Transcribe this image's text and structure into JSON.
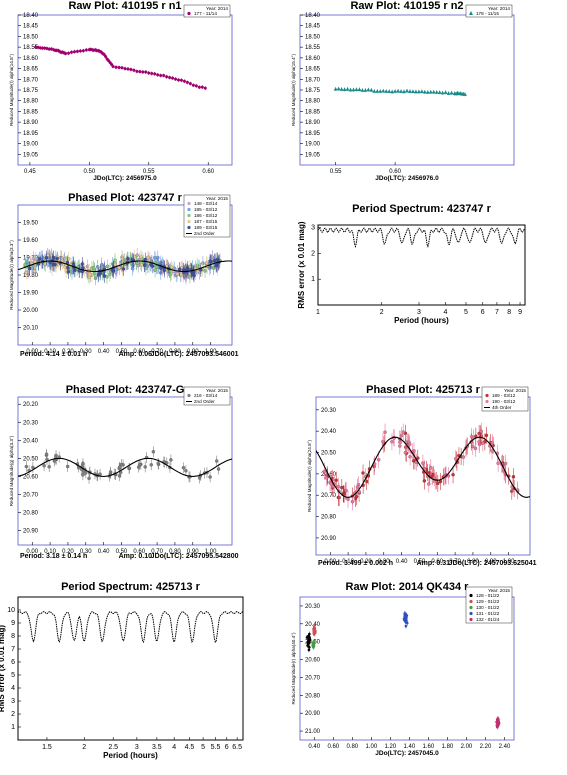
{
  "figure": {
    "name": "lightcurve-figure-grid"
  },
  "chart_data": [
    {
      "type": "scatter",
      "title": "Raw Plot: 410195   r  n1",
      "xlabel": "JDo(LTC): 2456975.0",
      "ylabel": "Reduced Magnitude(r) alpha(14.8°)",
      "xlim": [
        0.44,
        0.62
      ],
      "ylim": [
        19.1,
        18.4
      ],
      "y_inverted": true,
      "xticks": [
        "0.45",
        "0.50",
        "0.55",
        "0.60"
      ],
      "yticks": [
        "18.40",
        "18.45",
        "18.50",
        "18.55",
        "18.60",
        "18.65",
        "18.70",
        "18.75",
        "18.80",
        "18.85",
        "18.90",
        "18.95",
        "19.00",
        "19.05"
      ],
      "legend_title": "Year: 2014",
      "series": [
        {
          "name": "177 - 11/14",
          "color": "#a0006e",
          "marker": "circle",
          "mode": "trend",
          "x": [
            0.455,
            0.47,
            0.48,
            0.5,
            0.51,
            0.52,
            0.54,
            0.56,
            0.58,
            0.6
          ],
          "y": [
            18.55,
            18.56,
            18.58,
            18.56,
            18.57,
            18.64,
            18.66,
            18.68,
            18.71,
            18.75
          ]
        }
      ],
      "grid": false,
      "legend_position": "top-right"
    },
    {
      "type": "scatter",
      "title": "Raw Plot: 410195   r  n2",
      "xlabel": "JDo(LTC): 2456976.0",
      "ylabel": "Reduced Magnitude(r) alpha(15.4°)",
      "xlim": [
        0.52,
        0.7
      ],
      "ylim": [
        19.1,
        18.4
      ],
      "y_inverted": true,
      "xticks": [
        "0.55",
        "0.60"
      ],
      "yticks": [
        "18.40",
        "18.45",
        "18.50",
        "18.55",
        "18.60",
        "18.65",
        "18.70",
        "18.75",
        "18.80",
        "18.85",
        "18.90",
        "18.95",
        "19.00",
        "19.05"
      ],
      "legend_title": "Year: 2014",
      "series": [
        {
          "name": "178 - 11/15",
          "color": "#1a8a8a",
          "marker": "triangle",
          "mode": "trend",
          "x": [
            0.55,
            0.57,
            0.59,
            0.61,
            0.63,
            0.65,
            0.66
          ],
          "y": [
            18.745,
            18.75,
            18.755,
            18.755,
            18.76,
            18.765,
            18.77
          ]
        }
      ],
      "grid": false,
      "legend_position": "top-right"
    },
    {
      "type": "scatter",
      "title": "Phased Plot: 423747   r",
      "xlabel": "",
      "ylabel": "Reduced Magnitude(r) alpha(3.3°)",
      "xlim": [
        -0.08,
        1.12
      ],
      "ylim": [
        20.2,
        19.4
      ],
      "y_inverted": true,
      "xticks": [
        "0.00",
        "0.10",
        "0.20",
        "0.30",
        "0.40",
        "0.50",
        "0.60",
        "0.70",
        "0.80",
        "0.90",
        "1.00"
      ],
      "yticks": [
        "19.50",
        "19.60",
        "19.70",
        "19.80",
        "19.90",
        "20.00",
        "20.10"
      ],
      "legend_title": "Year: 2015",
      "footer": [
        "Period: 4.14 ± 0.01 h",
        "Amp: 0.06",
        "JDo(LTC): 2457093.546001"
      ],
      "series": [
        {
          "name": "148 - 03/14",
          "color": "#c8a0d8",
          "marker": "circle",
          "mode": "scatter"
        },
        {
          "name": "185 - 03/12",
          "color": "#6fa5e8",
          "marker": "circle",
          "mode": "scatter"
        },
        {
          "name": "186 - 03/12",
          "color": "#7fc87f",
          "marker": "circle",
          "mode": "scatter"
        },
        {
          "name": "187 - 03/15",
          "color": "#e8c890",
          "marker": "circle",
          "mode": "scatter"
        },
        {
          "name": "189 - 03/15",
          "color": "#4050a0",
          "marker": "circle",
          "mode": "scatter"
        },
        {
          "name": "2nd Order",
          "color": "#000000",
          "marker": "line",
          "mode": "fit",
          "fit": {
            "mean": 19.75,
            "a1": 0.0,
            "a2": 0.03,
            "phase1": 0.0,
            "phase2": 0.35,
            "period_phases": 2
          }
        }
      ],
      "scatter_spread": 0.05,
      "error_bar": 0.04,
      "grid": false,
      "legend_position": "top-right"
    },
    {
      "type": "line",
      "title": "Period Spectrum: 423747   r",
      "xlabel": "Period (hours)",
      "ylabel": "RMS error (x 0.01 mag)",
      "xscale": "log",
      "xlim": [
        1,
        9.5
      ],
      "ylim": [
        0,
        3.1
      ],
      "xticks": [
        "1",
        "2",
        "3",
        "4",
        "5",
        "6",
        "7",
        "8",
        "9"
      ],
      "yticks": [
        "1",
        "2",
        "3"
      ],
      "series": [
        {
          "name": "",
          "color": "#000000",
          "mode": "spectrum",
          "base": 2.9,
          "drop": 0.55,
          "min_at": [
            1.5,
            2.07,
            2.5,
            2.8,
            3.3,
            4.14,
            4.6,
            5.2,
            6.2,
            7.4,
            8.5
          ]
        }
      ],
      "grid": false
    },
    {
      "type": "scatter",
      "title": "Phased Plot: 423747-G",
      "xlabel": "",
      "ylabel": "Reduced Magnitude(g) alpha(3.3°)",
      "xlim": [
        -0.08,
        1.12
      ],
      "ylim": [
        20.98,
        20.16
      ],
      "y_inverted": true,
      "xticks": [
        "0.00",
        "0.10",
        "0.20",
        "0.30",
        "0.40",
        "0.50",
        "0.60",
        "0.70",
        "0.80",
        "0.90",
        "1.00"
      ],
      "yticks": [
        "20.20",
        "20.30",
        "20.40",
        "20.50",
        "20.60",
        "20.70",
        "20.80",
        "20.90"
      ],
      "legend_title": "Year: 2015",
      "footer": [
        "Period: 3.18 ± 0.14 h",
        "Amp: 0.10",
        "JDo(LTC): 2457095.542800"
      ],
      "series": [
        {
          "name": "216 - 03/14",
          "color": "#808080",
          "marker": "circle",
          "mode": "scatter"
        },
        {
          "name": "2nd Order",
          "color": "#000000",
          "marker": "line",
          "mode": "fit",
          "fit": {
            "mean": 20.55,
            "a1": 0.0,
            "a2": 0.05,
            "phase1": 0.0,
            "phase2": 0.4,
            "period_phases": 2
          }
        }
      ],
      "scatter_spread": 0.06,
      "error_bar": 0.03,
      "grid": false,
      "legend_position": "top-right"
    },
    {
      "type": "scatter",
      "title": "Phased Plot: 425713   r",
      "xlabel": "",
      "ylabel": "Reduced Magnitude(r) alpha(24.8°)",
      "xlim": [
        -0.08,
        1.12
      ],
      "ylim": [
        20.98,
        20.24
      ],
      "y_inverted": true,
      "xticks": [
        "0.00",
        "0.10",
        "0.20",
        "0.30",
        "0.40",
        "0.50",
        "0.60",
        "0.70",
        "0.80",
        "0.90",
        "1.00"
      ],
      "yticks": [
        "20.30",
        "20.40",
        "20.50",
        "20.60",
        "20.70",
        "20.80",
        "20.90"
      ],
      "legend_title": "Year: 2015",
      "footer": [
        "Period: 3.499 ± 0.002 h",
        "Amp: 0.31",
        "JDo(LTC): 2457093.625041"
      ],
      "series": [
        {
          "name": "189 - 03/12",
          "color": "#c83232",
          "marker": "circle",
          "mode": "scatter"
        },
        {
          "name": "190 - 03/12",
          "color": "#e878a0",
          "marker": "circle",
          "mode": "scatter"
        },
        {
          "name": "4th Order",
          "color": "#000000",
          "marker": "line",
          "mode": "fit",
          "fit": {
            "mean": 20.55,
            "a1": 0.04,
            "a2": 0.12,
            "phase1": 0.1,
            "phase2": 0.6,
            "period_phases": 2
          }
        }
      ],
      "scatter_spread": 0.07,
      "error_bar": 0.04,
      "grid": false,
      "legend_position": "top-right"
    },
    {
      "type": "line",
      "title": "Period Spectrum: 425713   r",
      "xlabel": "Period (hours)",
      "ylabel": "RMS error (x 0.01 mag)",
      "xscale": "log",
      "xlim": [
        1.2,
        6.8
      ],
      "ylim": [
        0,
        11
      ],
      "xticks": [
        "1.5",
        "2",
        "2.5",
        "3",
        "3.5",
        "4",
        "4.5",
        "5",
        "5.5",
        "6",
        "6.5"
      ],
      "yticks": [
        "1",
        "2",
        "3",
        "4",
        "5",
        "6",
        "7",
        "8",
        "9",
        "10"
      ],
      "series": [
        {
          "name": "",
          "color": "#000000",
          "mode": "spectrum",
          "base": 9.8,
          "drop": 2.2,
          "min_at": [
            1.35,
            1.65,
            1.85,
            2.0,
            2.3,
            2.7,
            3.15,
            3.5,
            4.0,
            4.6,
            5.5
          ]
        }
      ],
      "grid": false
    },
    {
      "type": "scatter",
      "title": "Raw Plot: 2014  QK434   r",
      "xlabel": "JDo(LTC): 2457045.0",
      "ylabel": "Reduced Magnitude(r) alpha(40.4°)",
      "xlim": [
        0.25,
        2.5
      ],
      "ylim": [
        21.05,
        20.25
      ],
      "y_inverted": true,
      "xticks": [
        "0.40",
        "0.60",
        "0.80",
        "1.00",
        "1.20",
        "1.40",
        "1.60",
        "1.80",
        "2.00",
        "2.20",
        "2.40"
      ],
      "yticks": [
        "20.30",
        "20.40",
        "20.50",
        "20.60",
        "20.70",
        "20.80",
        "20.90",
        "21.00"
      ],
      "legend_title": "Year: 2015",
      "series": [
        {
          "name": "128 - 01/22",
          "color": "#000000",
          "marker": "circle",
          "mode": "cluster",
          "cx": 0.34,
          "cy": 20.5,
          "w": 0.04,
          "h": 0.1
        },
        {
          "name": "129 - 01/22",
          "color": "#d05050",
          "marker": "circle",
          "mode": "cluster",
          "cx": 0.4,
          "cy": 20.44,
          "w": 0.03,
          "h": 0.06
        },
        {
          "name": "130 - 01/22",
          "color": "#40a040",
          "marker": "circle",
          "mode": "cluster",
          "cx": 0.39,
          "cy": 20.52,
          "w": 0.02,
          "h": 0.04
        },
        {
          "name": "131 - 01/22",
          "color": "#3050c0",
          "marker": "circle",
          "mode": "cluster",
          "cx": 1.36,
          "cy": 20.37,
          "w": 0.05,
          "h": 0.1
        },
        {
          "name": "132 - 01/24",
          "color": "#c03070",
          "marker": "circle",
          "mode": "cluster",
          "cx": 2.33,
          "cy": 20.95,
          "w": 0.04,
          "h": 0.08
        }
      ],
      "grid": false,
      "legend_position": "top-right"
    }
  ]
}
